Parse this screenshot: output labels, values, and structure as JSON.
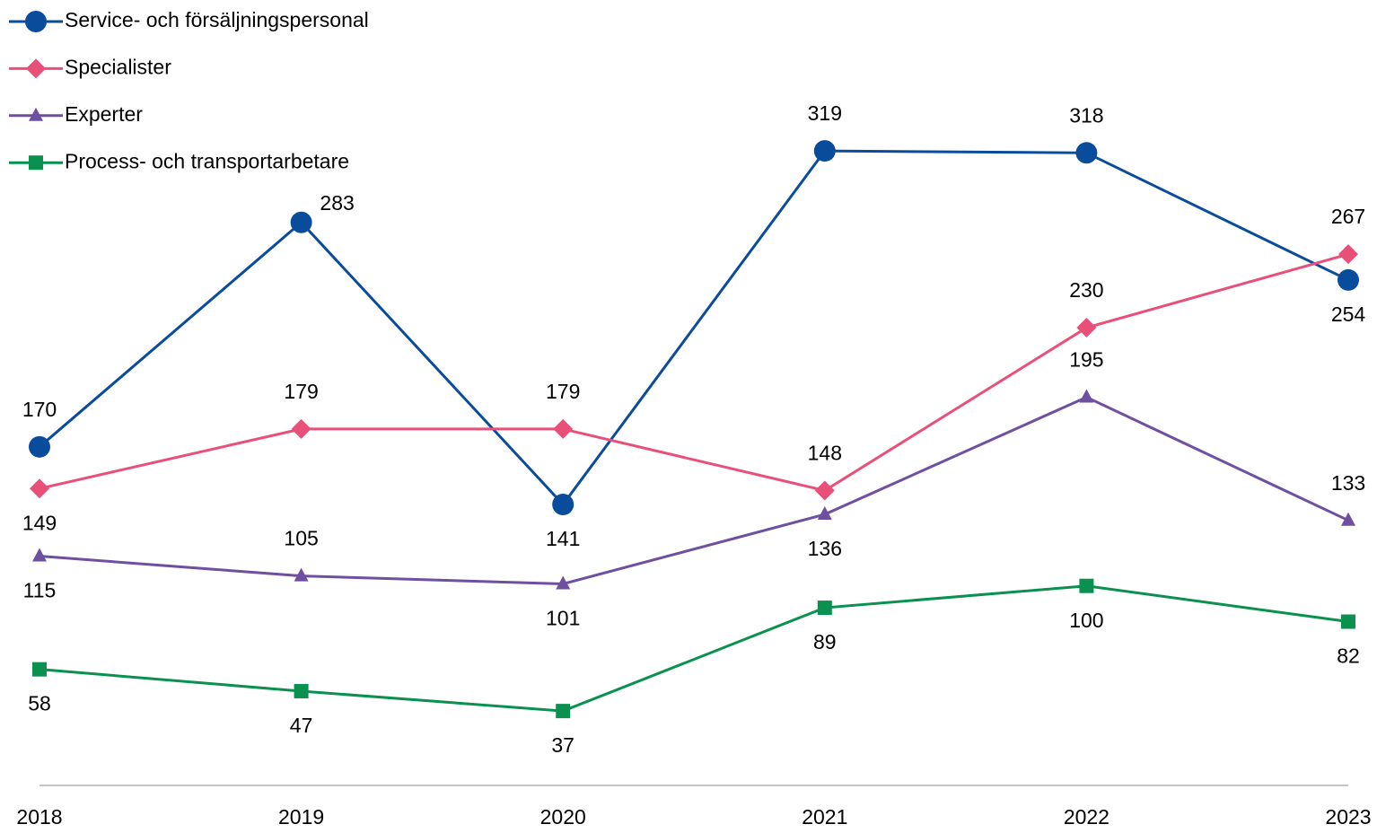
{
  "chart_data": {
    "type": "line",
    "categories": [
      "2018",
      "2019",
      "2020",
      "2021",
      "2022",
      "2023"
    ],
    "ylim": [
      0,
      350
    ],
    "series": [
      {
        "name": "Service- och försäljningspersonal",
        "color": "#0a4c9c",
        "marker": "circle",
        "values": [
          170,
          283,
          141,
          319,
          318,
          254
        ]
      },
      {
        "name": "Specialister",
        "color": "#e8507a",
        "marker": "diamond",
        "values": [
          149,
          179,
          179,
          148,
          230,
          267
        ]
      },
      {
        "name": "Experter",
        "color": "#6f4fa0",
        "marker": "triangle",
        "values": [
          115,
          105,
          101,
          136,
          195,
          133
        ]
      },
      {
        "name": "Process- och transportarbetare",
        "color": "#0a9150",
        "marker": "square",
        "values": [
          58,
          47,
          37,
          89,
          100,
          82
        ]
      }
    ]
  }
}
